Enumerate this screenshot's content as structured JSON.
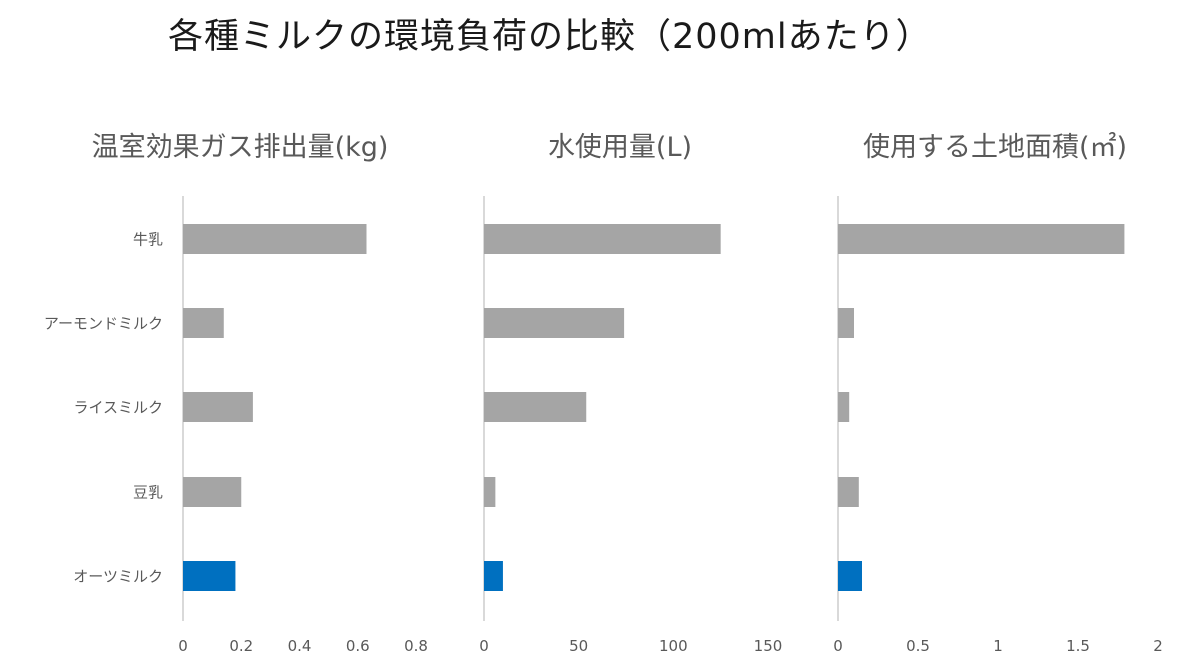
{
  "title": "各種ミルクの環境負荷の比較（200mlあたり）",
  "chart_data": [
    {
      "type": "bar",
      "orientation": "horizontal",
      "title": "温室効果ガス排出量(kg)",
      "categories": [
        "牛乳",
        "アーモンドミルク",
        "ライスミルク",
        "豆乳",
        "オーツミルク"
      ],
      "values": [
        0.63,
        0.14,
        0.24,
        0.2,
        0.18
      ],
      "xlim": [
        0,
        0.8
      ],
      "xticks": [
        "0",
        "0.2",
        "0.4",
        "0.6",
        "0.8"
      ],
      "highlight_index": 4
    },
    {
      "type": "bar",
      "orientation": "horizontal",
      "title": "水使用量(L)",
      "categories": [
        "牛乳",
        "アーモンドミルク",
        "ライスミルク",
        "豆乳",
        "オーツミルク"
      ],
      "values": [
        125,
        74,
        54,
        6,
        10
      ],
      "xlim": [
        0,
        150
      ],
      "xticks": [
        "0",
        "50",
        "100",
        "150"
      ],
      "highlight_index": 4
    },
    {
      "type": "bar",
      "orientation": "horizontal",
      "title": "使用する土地面積(㎡)",
      "categories": [
        "牛乳",
        "アーモンドミルク",
        "ライスミルク",
        "豆乳",
        "オーツミルク"
      ],
      "values": [
        1.79,
        0.1,
        0.07,
        0.13,
        0.15
      ],
      "xlim": [
        0,
        2
      ],
      "xticks": [
        "0",
        "0.5",
        "1",
        "1.5",
        "2"
      ],
      "highlight_index": 4
    }
  ],
  "colors": {
    "bar": "#a5a5a5",
    "highlight": "#0070c0",
    "axis": "#d9d9d9"
  }
}
